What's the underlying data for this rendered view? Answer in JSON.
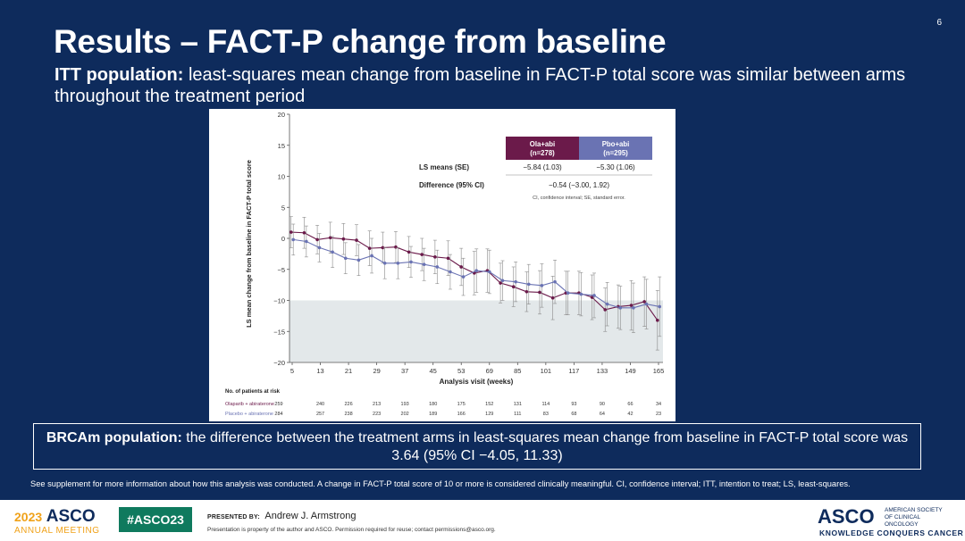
{
  "slide": {
    "number": "6",
    "title": "Results – FACT-P change from baseline",
    "subtitle_bold": "ITT population:",
    "subtitle_rest": " least-squares mean change from baseline in FACT-P total score was similar between arms throughout the treatment period",
    "brca_bold": "BRCAm population:",
    "brca_rest": " the difference between the treatment arms in least-squares mean change from baseline in FACT-P total score was 3.64 (95% CI −4.05, 11.33)",
    "footnote": "See supplement for more information about how this analysis was conducted. A change in FACT-P total score of 10 or more is considered clinically meaningful. CI, confidence interval; ITT, intention to treat; LS, least-squares."
  },
  "footer": {
    "year": "2023",
    "asco": "ASCO",
    "meeting": "ANNUAL MEETING",
    "hashtag": "#ASCO23",
    "presented_label": "PRESENTED BY:",
    "presenter": "Andrew J. Armstrong",
    "permission": "Presentation is property of the author and ASCO. Permission required for reuse; contact permissions@asco.org.",
    "org_short": "ASCO",
    "org_long": "AMERICAN SOCIETY OF CLINICAL ONCOLOGY",
    "org_tagline": "KNOWLEDGE CONQUERS CANCER"
  },
  "colors": {
    "background": "#0e2b5c",
    "ola": "#6b1a4a",
    "pbo": "#6a73b3",
    "shade": "#e3e8ea"
  },
  "chart_data": {
    "type": "line",
    "xlabel": "Analysis visit (weeks)",
    "ylabel": "LS mean change from baseline in FACT-P total score",
    "ylim": [
      -20,
      20
    ],
    "y_ticks": [
      20,
      15,
      10,
      5,
      0,
      -5,
      -10,
      -15,
      -20
    ],
    "x_ticks": [
      5,
      13,
      21,
      29,
      37,
      45,
      53,
      69,
      85,
      101,
      117,
      133,
      149,
      165
    ],
    "clinical_threshold_band": [
      -20,
      -10
    ],
    "series": [
      {
        "name": "Olaparib + abiraterone",
        "values": [
          1.0,
          0.9,
          -0.2,
          0.1,
          -0.1,
          -0.3,
          -1.6,
          -1.5,
          -1.4,
          -2.2,
          -2.6,
          -3.0,
          -3.2,
          -4.6,
          -5.6,
          -5.2,
          -7.2,
          -7.8,
          -8.6,
          -8.7,
          -9.6,
          -8.8,
          -8.8,
          -9.5,
          -11.5,
          -11.0,
          -10.8,
          -10.2,
          -13.2
        ],
        "error": [
          2.5,
          2.5,
          2.3,
          2.5,
          2.5,
          2.5,
          2.8,
          2.5,
          2.5,
          2.5,
          2.6,
          2.7,
          2.8,
          3.0,
          3.5,
          3.5,
          3.2,
          3.2,
          3.2,
          3.5,
          3.5,
          3.5,
          3.5,
          3.6,
          3.5,
          3.5,
          4.0,
          4.0,
          4.8
        ]
      },
      {
        "name": "Placebo + abiraterone",
        "values": [
          -0.2,
          -0.5,
          -1.5,
          -2.2,
          -3.2,
          -3.5,
          -2.8,
          -4.0,
          -4.0,
          -3.8,
          -4.2,
          -4.6,
          -5.4,
          -6.2,
          -5.2,
          -5.4,
          -6.8,
          -7.0,
          -7.4,
          -7.6,
          -7.0,
          -8.8,
          -9.0,
          -9.2,
          -10.6,
          -11.2,
          -11.2,
          -10.6,
          -11.0
        ],
        "error": [
          2.5,
          2.5,
          2.3,
          2.5,
          2.5,
          2.5,
          2.8,
          2.5,
          2.5,
          2.5,
          2.6,
          2.7,
          2.8,
          3.0,
          3.5,
          3.5,
          3.2,
          3.2,
          3.2,
          3.5,
          3.5,
          3.5,
          3.5,
          3.6,
          3.5,
          3.5,
          4.0,
          4.0,
          4.8
        ]
      }
    ],
    "inset_table": {
      "headers": [
        "Ola+abi\n(n=278)",
        "Pbo+abi\n(n=295)"
      ],
      "row_ls_label": "LS means (SE)",
      "ola_ls": "−5.84 (1.03)",
      "pbo_ls": "−5.30 (1.06)",
      "row_diff_label": "Difference (95% CI)",
      "diff_value": "−0.54 (−3.00, 1.92)",
      "footnote": "CI, confidence interval; SE, standard error."
    },
    "risk_table": {
      "title": "No. of patients at risk",
      "rows": [
        {
          "label": "Olaparib + abiraterone",
          "values": [
            "259",
            "240",
            "226",
            "213",
            "193",
            "180",
            "175",
            "152",
            "131",
            "114",
            "93",
            "90",
            "66",
            "34"
          ]
        },
        {
          "label": "Placebo + abiraterone",
          "values": [
            "284",
            "257",
            "238",
            "223",
            "202",
            "189",
            "166",
            "129",
            "111",
            "83",
            "68",
            "64",
            "42",
            "23"
          ]
        }
      ]
    }
  }
}
